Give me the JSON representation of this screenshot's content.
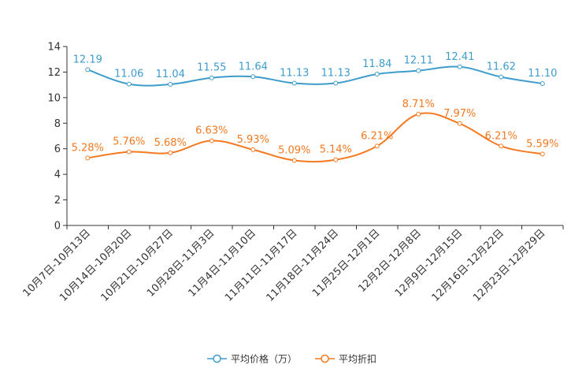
{
  "chart_data": {
    "type": "line",
    "title": "",
    "xlabel": "",
    "ylabel": "",
    "ylim": [
      0,
      14
    ],
    "yticks": [
      0,
      2,
      4,
      6,
      8,
      10,
      12,
      14
    ],
    "grid": false,
    "legend_position": "bottom-center",
    "categories": [
      "10月7日-10月13日",
      "10月14日-10月20日",
      "10月21日-10月27日",
      "10月28日-11月3日",
      "11月4日-11月10日",
      "11月11日-11月17日",
      "11月18日-11月24日",
      "11月25日-12月1日",
      "12月2日-12月8日",
      "12月9日-12月15日",
      "12月16日-12月22日",
      "12月23日-12月29日"
    ],
    "series": [
      {
        "name": "平均价格（万）",
        "color": "#3d9ccc",
        "values": [
          12.19,
          11.06,
          11.04,
          11.55,
          11.64,
          11.13,
          11.13,
          11.84,
          12.11,
          12.41,
          11.62,
          11.1
        ],
        "labels": [
          "12.19",
          "11.06",
          "11.04",
          "11.55",
          "11.64",
          "11.13",
          "11.13",
          "11.84",
          "12.11",
          "12.41",
          "11.62",
          "11.10"
        ]
      },
      {
        "name": "平均折扣",
        "color": "#f47920",
        "values": [
          5.28,
          5.76,
          5.68,
          6.63,
          5.93,
          5.09,
          5.14,
          6.21,
          8.71,
          7.97,
          6.21,
          5.59
        ],
        "labels": [
          "5.28%",
          "5.76%",
          "5.68%",
          "6.63%",
          "5.93%",
          "5.09%",
          "5.14%",
          "6.21%",
          "8.71%",
          "7.97%",
          "6.21%",
          "5.59%"
        ]
      }
    ]
  }
}
